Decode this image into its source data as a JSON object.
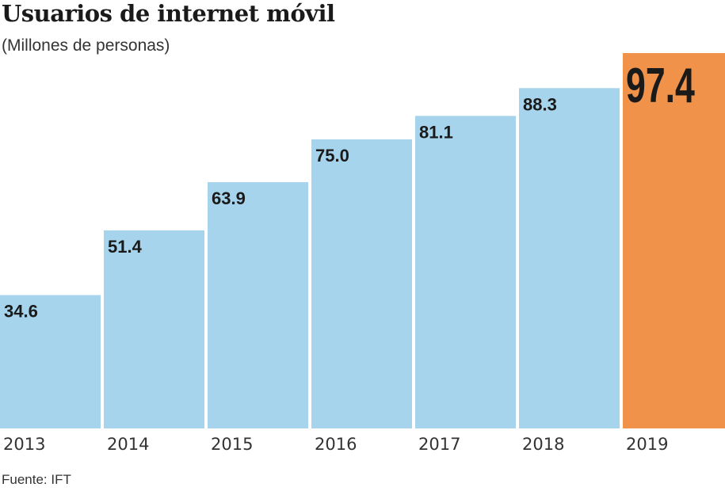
{
  "chart_data": {
    "type": "bar",
    "title": "Usuarios de internet móvil",
    "subtitle": "(Millones de personas)",
    "categories": [
      "2013",
      "2014",
      "2015",
      "2016",
      "2017",
      "2018",
      "2019"
    ],
    "values": [
      34.6,
      51.4,
      63.9,
      75.0,
      81.1,
      88.3,
      97.4
    ],
    "value_labels": [
      "34.6",
      "51.4",
      "63.9",
      "75.0",
      "81.1",
      "88.3",
      "97.4"
    ],
    "highlight_index": 6,
    "ylim": [
      0,
      97.4
    ],
    "grid": false,
    "source": "Fuente: IFT",
    "colors": {
      "bar": "#a6d4ec",
      "highlight": "#f0924a"
    }
  }
}
